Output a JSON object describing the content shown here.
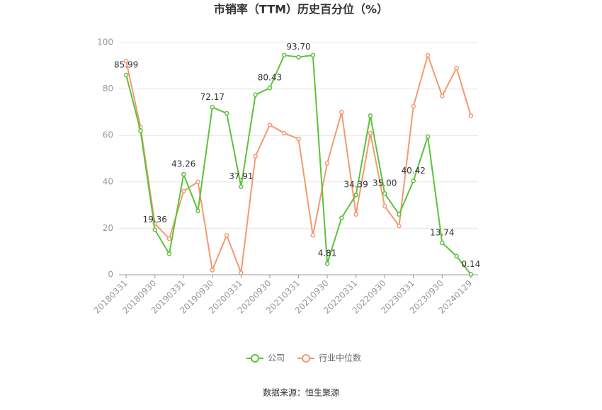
{
  "chart_data": {
    "type": "line",
    "title": "市销率（TTM）历史百分位（%）",
    "categories": [
      "20180331",
      null,
      "20180930",
      null,
      "20190331",
      null,
      "20190930",
      null,
      "20200331",
      null,
      "20200930",
      null,
      "20210331",
      null,
      "20210930",
      null,
      "20220331",
      null,
      "20220930",
      null,
      "20230331",
      null,
      "20230930",
      null,
      "20240129"
    ],
    "series": [
      {
        "name": "公司",
        "color": "#5cc23a",
        "values": [
          85.99,
          62,
          19.36,
          9,
          43.26,
          27.5,
          72.17,
          69.5,
          37.91,
          77.5,
          80.43,
          94.5,
          93.7,
          94.5,
          4.81,
          24.5,
          34.39,
          68.5,
          35.0,
          26,
          40.42,
          59.5,
          13.74,
          8,
          0.14
        ],
        "value_labels": [
          "85.99",
          null,
          "19.36",
          null,
          "43.26",
          null,
          "72.17",
          null,
          "37.91",
          null,
          "80.43",
          null,
          "93.70",
          null,
          "4.81",
          null,
          "34.39",
          null,
          "35.00",
          null,
          "40.42",
          null,
          "13.74",
          null,
          "0.14"
        ]
      },
      {
        "name": "行业中位数",
        "color": "#f29a70",
        "values": [
          92,
          63.5,
          22,
          15.5,
          36,
          40,
          2,
          17,
          0.8,
          51,
          64.5,
          61,
          58.5,
          17,
          48,
          70,
          26,
          61,
          29.5,
          21,
          72.5,
          94.5,
          77,
          89,
          68.5
        ]
      }
    ],
    "ylim": [
      0,
      100
    ],
    "yticks": [
      0,
      20,
      40,
      60,
      80,
      100
    ],
    "grid": true,
    "source": "数据来源：恒生聚源"
  }
}
